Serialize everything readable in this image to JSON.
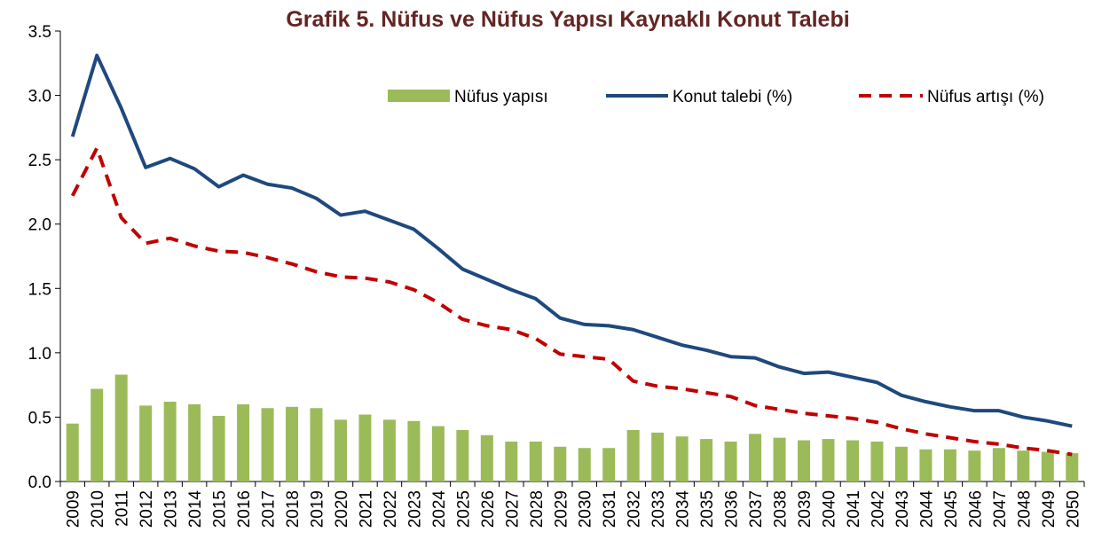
{
  "chart_data": {
    "type": "combo",
    "title": "Grafik 5. Nüfus ve Nüfus Yapısı Kaynaklı Konut Talebi",
    "categories": [
      "2009",
      "2010",
      "2011",
      "2012",
      "2013",
      "2014",
      "2015",
      "2016",
      "2017",
      "2018",
      "2019",
      "2020",
      "2021",
      "2022",
      "2023",
      "2024",
      "2025",
      "2026",
      "2027",
      "2028",
      "2029",
      "2030",
      "2031",
      "2032",
      "2033",
      "2034",
      "2035",
      "2036",
      "2037",
      "2038",
      "2039",
      "2040",
      "2041",
      "2042",
      "2043",
      "2044",
      "2045",
      "2046",
      "2047",
      "2048",
      "2049",
      "2050"
    ],
    "series": [
      {
        "name": "Nüfus yapısı",
        "type": "bar",
        "color": "#9bbb59",
        "values": [
          0.45,
          0.72,
          0.83,
          0.59,
          0.62,
          0.6,
          0.51,
          0.6,
          0.57,
          0.58,
          0.57,
          0.48,
          0.52,
          0.48,
          0.47,
          0.43,
          0.4,
          0.36,
          0.31,
          0.31,
          0.27,
          0.26,
          0.26,
          0.4,
          0.38,
          0.35,
          0.33,
          0.31,
          0.37,
          0.34,
          0.32,
          0.33,
          0.32,
          0.31,
          0.27,
          0.25,
          0.25,
          0.24,
          0.26,
          0.24,
          0.23,
          0.22
        ]
      },
      {
        "name": "Konut talebi (%)",
        "type": "line",
        "color": "#1f497d",
        "dashed": false,
        "values": [
          2.68,
          3.31,
          2.9,
          2.44,
          2.51,
          2.43,
          2.29,
          2.38,
          2.31,
          2.28,
          2.2,
          2.07,
          2.1,
          2.03,
          1.96,
          1.81,
          1.65,
          1.57,
          1.49,
          1.42,
          1.27,
          1.22,
          1.21,
          1.18,
          1.12,
          1.06,
          1.02,
          0.97,
          0.96,
          0.89,
          0.84,
          0.85,
          0.81,
          0.77,
          0.67,
          0.62,
          0.58,
          0.55,
          0.55,
          0.5,
          0.47,
          0.43
        ]
      },
      {
        "name": "Nüfus artışı (%)",
        "type": "line",
        "color": "#c00000",
        "dashed": true,
        "values": [
          2.22,
          2.59,
          2.05,
          1.85,
          1.89,
          1.83,
          1.79,
          1.78,
          1.74,
          1.69,
          1.63,
          1.59,
          1.58,
          1.55,
          1.49,
          1.39,
          1.26,
          1.21,
          1.18,
          1.11,
          0.99,
          0.97,
          0.95,
          0.78,
          0.74,
          0.72,
          0.69,
          0.66,
          0.59,
          0.56,
          0.53,
          0.51,
          0.49,
          0.46,
          0.41,
          0.37,
          0.34,
          0.31,
          0.29,
          0.26,
          0.24,
          0.21
        ]
      }
    ],
    "ylim": [
      0,
      3.5
    ],
    "yticks": [
      {
        "value": 0,
        "label": "0.0"
      },
      0.5,
      {
        "value": 1,
        "label": "1.0"
      },
      1.5,
      {
        "value": 2,
        "label": "2.0"
      },
      2.5,
      {
        "value": 3,
        "label": "3.0"
      },
      3.5
    ]
  }
}
